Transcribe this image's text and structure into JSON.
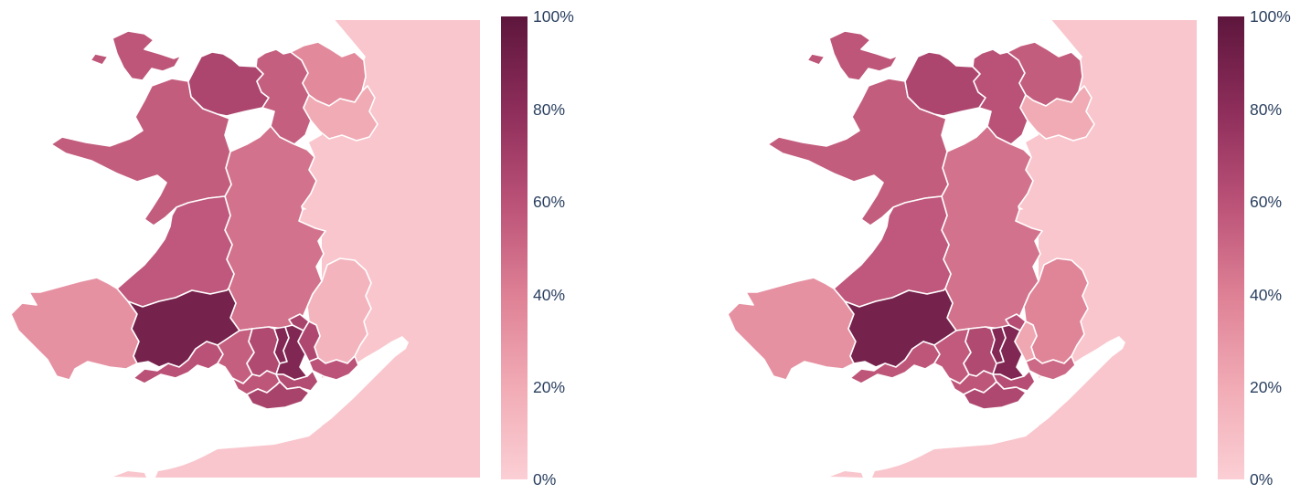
{
  "page": {
    "background": "#ffffff",
    "description": "Two side-by-side choropleth maps of Wales unitary authorities with percentage colorbars"
  },
  "legend": {
    "ticks": [
      "100%",
      "80%",
      "60%",
      "40%",
      "20%",
      "0%"
    ],
    "label_color": "#2a3f5f"
  },
  "colorscale": {
    "name": "burgundy-pink",
    "stops": [
      [
        0.0,
        "#fbcfd5"
      ],
      [
        0.2,
        "#f1abb5"
      ],
      [
        0.4,
        "#de8095"
      ],
      [
        0.6,
        "#ba5177"
      ],
      [
        0.8,
        "#8d2d5a"
      ],
      [
        1.0,
        "#5d163d"
      ]
    ]
  },
  "chart_data": [
    {
      "type": "choropleth",
      "map": "left",
      "geography": "Wales unitary authorities (England shown as light backdrop)",
      "unit": "%",
      "zmin": 0,
      "zmax": 100,
      "legend_ticks": [
        "0%",
        "20%",
        "40%",
        "60%",
        "80%",
        "100%"
      ],
      "values": {
        "Isle of Anglesey": 58,
        "Gwynedd": 55,
        "Conwy": 66,
        "Denbighshire": 54,
        "Flintshire": 36,
        "Wrexham": 20,
        "Powys": 46,
        "Ceredigion": 57,
        "Pembrokeshire": 32,
        "Carmarthenshire": 90,
        "Swansea": 60,
        "Neath Port Talbot": 54,
        "Bridgend": 58,
        "Rhondda Cynon Taf": 64,
        "Merthyr Tydfil": 84,
        "Caerphilly": 85,
        "Blaenau Gwent": 68,
        "Torfaen": 65,
        "Monmouthshire": 15,
        "Newport": 59,
        "Cardiff": 63,
        "Vale of Glamorgan": 68,
        "England backdrop": 5
      }
    },
    {
      "type": "choropleth",
      "map": "right",
      "geography": "Wales unitary authorities (England shown as light backdrop)",
      "unit": "%",
      "zmin": 0,
      "zmax": 100,
      "legend_ticks": [
        "0%",
        "20%",
        "40%",
        "60%",
        "80%",
        "100%"
      ],
      "values": {
        "Isle of Anglesey": 58,
        "Gwynedd": 55,
        "Conwy": 66,
        "Denbighshire": 60,
        "Flintshire": 55,
        "Wrexham": 20,
        "Powys": 46,
        "Ceredigion": 57,
        "Pembrokeshire": 32,
        "Carmarthenshire": 90,
        "Swansea": 58,
        "Neath Port Talbot": 56,
        "Bridgend": 58,
        "Rhondda Cynon Taf": 64,
        "Merthyr Tydfil": 84,
        "Caerphilly": 85,
        "Blaenau Gwent": 62,
        "Torfaen": 22,
        "Monmouthshire": 38,
        "Newport": 50,
        "Cardiff": 62,
        "Vale of Glamorgan": 65,
        "England backdrop": 5
      }
    }
  ]
}
